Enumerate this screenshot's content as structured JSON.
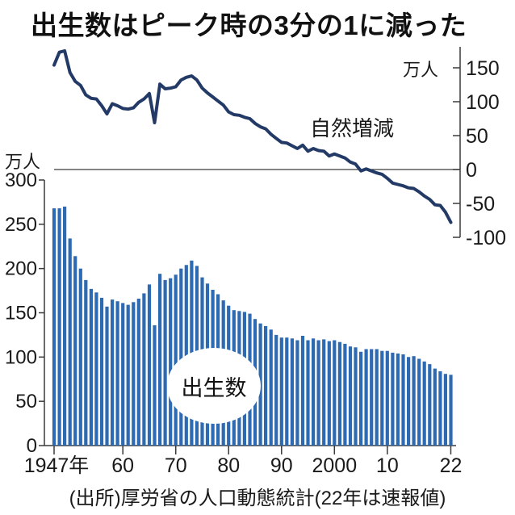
{
  "title": "出生数はピーク時の3分の1に減った",
  "source": "(出所)厚労省の人口動態統計(22年は速報値)",
  "units": {
    "left": "万人",
    "right": "万人"
  },
  "colors": {
    "bar": "#2d6ab2",
    "line": "#233a66",
    "axis": "#3a3a3a",
    "text": "#1a1a1a",
    "background": "#ffffff"
  },
  "left_axis": {
    "unit": "万人",
    "ticks": [
      "300",
      "250",
      "200",
      "150",
      "100",
      "50",
      "0"
    ]
  },
  "right_axis": {
    "unit": "万人",
    "ticks": [
      "150",
      "100",
      "50",
      "0",
      "-50",
      "-100"
    ]
  },
  "x_axis": {
    "labels": [
      "1947年",
      "60",
      "70",
      "80",
      "90",
      "2000",
      "10",
      "22"
    ],
    "years": [
      1947,
      1960,
      1970,
      1980,
      1990,
      2000,
      2010,
      2022
    ]
  },
  "chart_data": [
    {
      "type": "line",
      "label": "自然増減",
      "unit": "万人",
      "axis": "right",
      "ylim": [
        -100,
        150
      ],
      "yticks": [
        150,
        100,
        50,
        0,
        -50,
        -100
      ],
      "year_start": 1947,
      "year_end": 2022,
      "values": [
        154,
        173,
        175,
        143,
        130,
        124,
        110,
        105,
        104,
        94,
        82,
        97,
        94,
        90,
        89,
        91,
        99,
        104,
        112,
        69,
        126,
        119,
        120,
        122,
        132,
        136,
        138,
        132,
        120,
        113,
        107,
        101,
        95,
        85,
        81,
        80,
        77,
        75,
        68,
        63,
        60,
        52,
        46,
        40,
        39,
        35,
        31,
        36,
        27,
        31,
        28,
        27,
        20,
        23,
        20,
        17,
        11,
        8,
        -2,
        1,
        -2,
        -5,
        -7,
        -13,
        -20,
        -22,
        -24,
        -27,
        -28,
        -33,
        -39,
        -44,
        -52,
        -53,
        -63,
        -78
      ]
    },
    {
      "type": "bar",
      "label": "出生数",
      "unit": "万人",
      "axis": "left",
      "ylim": [
        0,
        300
      ],
      "yticks": [
        300,
        250,
        200,
        150,
        100,
        50,
        0
      ],
      "year_start": 1947,
      "year_end": 2022,
      "values": [
        268,
        268,
        270,
        234,
        214,
        200,
        187,
        177,
        173,
        167,
        157,
        165,
        163,
        161,
        159,
        162,
        166,
        172,
        182,
        136,
        194,
        187,
        189,
        193,
        200,
        204,
        209,
        203,
        190,
        183,
        176,
        171,
        164,
        158,
        153,
        152,
        151,
        149,
        143,
        138,
        135,
        131,
        125,
        122,
        122,
        121,
        119,
        124,
        119,
        121,
        119,
        120,
        118,
        119,
        117,
        115,
        112,
        111,
        106,
        109,
        109,
        109,
        107,
        107,
        105,
        104,
        103,
        100,
        101,
        98,
        95,
        92,
        87,
        84,
        81,
        80
      ]
    }
  ]
}
